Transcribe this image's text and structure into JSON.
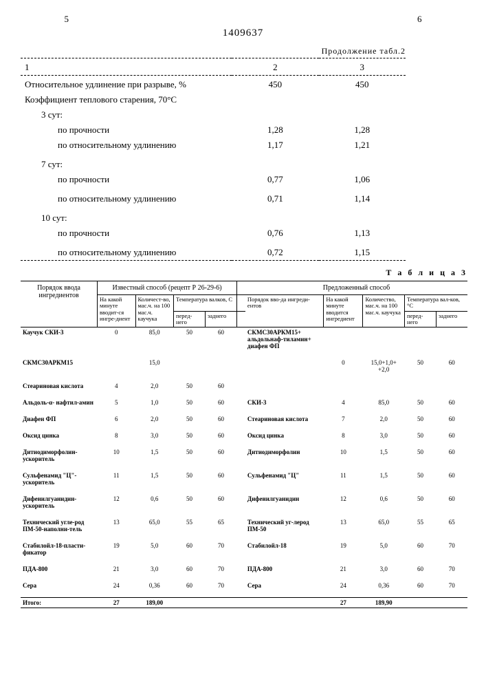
{
  "header": {
    "left_page": "5",
    "doc_number": "1409637",
    "right_page": "6",
    "continuation": "Продолжение табл.2"
  },
  "table2": {
    "col_headers": [
      "1",
      "2",
      "3"
    ],
    "rows": [
      {
        "label": "Относительное удлинение при разрыве, %",
        "v2": "450",
        "v3": "450",
        "indent": 0,
        "bold": false
      },
      {
        "label": "Коэффициент теплового старения, 70°С",
        "v2": "",
        "v3": "",
        "indent": 0,
        "bold": false
      },
      {
        "label": "3 сут:",
        "v2": "",
        "v3": "",
        "indent": 1,
        "bold": false
      },
      {
        "label": "по прочности",
        "v2": "1,28",
        "v3": "1,28",
        "indent": 2,
        "bold": false
      },
      {
        "label": "по относительному удлинению",
        "v2": "1,17",
        "v3": "1,21",
        "indent": 2,
        "bold": false
      },
      {
        "label": "7 сут:",
        "v2": "",
        "v3": "",
        "indent": 1,
        "bold": false,
        "spacer_before": true
      },
      {
        "label": "по прочности",
        "v2": "0,77",
        "v3": "1,06",
        "indent": 2,
        "bold": false
      },
      {
        "label": "по относительному удлинению",
        "v2": "0,71",
        "v3": "1,14",
        "indent": 2,
        "bold": false,
        "spacer_before": true
      },
      {
        "label": "10 сут:",
        "v2": "",
        "v3": "",
        "indent": 1,
        "bold": false,
        "spacer_before": true
      },
      {
        "label": "по прочности",
        "v2": "0,76",
        "v3": "1,13",
        "indent": 2,
        "bold": false
      },
      {
        "label": "по относительному удлинению",
        "v2": "0,72",
        "v3": "1,15",
        "indent": 2,
        "bold": false,
        "spacer_before": true
      }
    ]
  },
  "table3": {
    "title": "Т а б л и ц а  3",
    "group_left": "Известный способ (рецепт Р 26-29-6)",
    "group_right": "Предложенный способ",
    "left_headers": {
      "order": "Порядок ввода ингредиентов",
      "minute": "На какой минуте вводит-ся ингре-диент",
      "amount": "Количест-во, мас.ч. на 100 мас.ч. каучука",
      "temp": "Температура валков, С",
      "front": "перед-него",
      "rear": "заднего"
    },
    "right_headers": {
      "order": "Порядок вво-да ингреди-ентов",
      "minute": "На какой минуте вводится ингредиент",
      "amount": "Количество, мас.ч. на 100 мас.ч. каучука",
      "temp": "Температура вал-ков, °С",
      "front": "перед-него",
      "rear": "заднего"
    },
    "rows": [
      {
        "l_ing": "Каучук СКИ-3",
        "l_min": "0",
        "l_amt": "85,0",
        "l_t1": "50",
        "l_t2": "60",
        "r_ing": "СКМС30АРКМ15+ альдольнаф-тиламин+ диафен ФП",
        "r_min": "",
        "r_amt": "",
        "r_t1": "",
        "r_t2": ""
      },
      {
        "l_ing": "СКМС30АРКМ15",
        "l_min": "",
        "l_amt": "15,0",
        "l_t1": "",
        "l_t2": "",
        "r_ing": "",
        "r_min": "0",
        "r_amt": "15,0+1,0+ +2,0",
        "r_t1": "50",
        "r_t2": "60"
      },
      {
        "l_ing": "Стеариновая кислота",
        "l_min": "4",
        "l_amt": "2,0",
        "l_t1": "50",
        "l_t2": "60",
        "r_ing": "",
        "r_min": "",
        "r_amt": "",
        "r_t1": "",
        "r_t2": ""
      },
      {
        "l_ing": "Альдоль-α- нафтил-амин",
        "l_min": "5",
        "l_amt": "1,0",
        "l_t1": "50",
        "l_t2": "60",
        "r_ing": "СКИ-3",
        "r_min": "4",
        "r_amt": "85,0",
        "r_t1": "50",
        "r_t2": "60"
      },
      {
        "l_ing": "Диафен ФП",
        "l_min": "6",
        "l_amt": "2,0",
        "l_t1": "50",
        "l_t2": "60",
        "r_ing": "Стеариновая кислота",
        "r_min": "7",
        "r_amt": "2,0",
        "r_t1": "50",
        "r_t2": "60"
      },
      {
        "l_ing": "Оксид цинка",
        "l_min": "8",
        "l_amt": "3,0",
        "l_t1": "50",
        "l_t2": "60",
        "r_ing": "Оксид цинка",
        "r_min": "8",
        "r_amt": "3,0",
        "r_t1": "50",
        "r_t2": "60"
      },
      {
        "l_ing": "Дитиодиморфолин-ускоритель",
        "l_min": "10",
        "l_amt": "1,5",
        "l_t1": "50",
        "l_t2": "60",
        "r_ing": "Дитиодиморфолин",
        "r_min": "10",
        "r_amt": "1,5",
        "r_t1": "50",
        "r_t2": "60"
      },
      {
        "l_ing": "Сульфенамид \"Ц\"-ускоритель",
        "l_min": "11",
        "l_amt": "1,5",
        "l_t1": "50",
        "l_t2": "60",
        "r_ing": "Сульфенамид \"Ц\"",
        "r_min": "11",
        "r_amt": "1,5",
        "r_t1": "50",
        "r_t2": "60"
      },
      {
        "l_ing": "Дифенилгуанидин-ускоритель",
        "l_min": "12",
        "l_amt": "0,6",
        "l_t1": "50",
        "l_t2": "60",
        "r_ing": "Дифенилгуанидин",
        "r_min": "12",
        "r_amt": "0,6",
        "r_t1": "50",
        "r_t2": "60"
      },
      {
        "l_ing": "Технический угле-род ПМ-50-наполни-тель",
        "l_min": "13",
        "l_amt": "65,0",
        "l_t1": "55",
        "l_t2": "65",
        "r_ing": "Технический уг-лерод ПМ-50",
        "r_min": "13",
        "r_amt": "65,0",
        "r_t1": "55",
        "r_t2": "65"
      },
      {
        "l_ing": "Стабилойл-18-пласти-фикатор",
        "l_min": "19",
        "l_amt": "5,0",
        "l_t1": "60",
        "l_t2": "70",
        "r_ing": "Стабилойл-18",
        "r_min": "19",
        "r_amt": "5,0",
        "r_t1": "60",
        "r_t2": "70"
      },
      {
        "l_ing": "ПДА-800",
        "l_min": "21",
        "l_amt": "3,0",
        "l_t1": "60",
        "l_t2": "70",
        "r_ing": "ПДА-800",
        "r_min": "21",
        "r_amt": "3,0",
        "r_t1": "60",
        "r_t2": "70"
      },
      {
        "l_ing": "Сера",
        "l_min": "24",
        "l_amt": "0,36",
        "l_t1": "60",
        "l_t2": "70",
        "r_ing": "Сера",
        "r_min": "24",
        "r_amt": "0,36",
        "r_t1": "60",
        "r_t2": "70"
      }
    ],
    "total": {
      "label": "Итого:",
      "l_min": "27",
      "l_amt": "189,00",
      "r_min": "27",
      "r_amt": "189,90"
    }
  }
}
